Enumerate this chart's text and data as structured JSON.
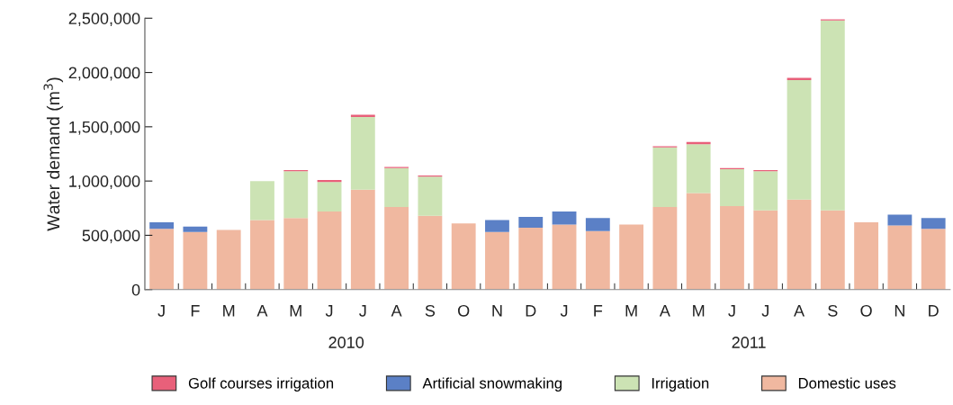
{
  "chart_data": {
    "type": "bar",
    "stacked": true,
    "categories": [
      "J",
      "F",
      "M",
      "A",
      "M",
      "J",
      "J",
      "A",
      "S",
      "O",
      "N",
      "D",
      "J",
      "F",
      "M",
      "A",
      "M",
      "J",
      "J",
      "A",
      "S",
      "O",
      "N",
      "D"
    ],
    "ylabel": "Water demand (m$^{3}$)",
    "series": [
      {
        "name": "Domestic uses",
        "color": "#f0b8a0",
        "values": [
          560000,
          530000,
          550000,
          640000,
          660000,
          720000,
          920000,
          760000,
          680000,
          610000,
          530000,
          570000,
          600000,
          540000,
          600000,
          760000,
          890000,
          770000,
          730000,
          830000,
          730000,
          620000,
          590000,
          560000
        ]
      },
      {
        "name": "Irrigation",
        "color": "#cce3b4",
        "values": [
          0,
          0,
          0,
          360000,
          430000,
          270000,
          670000,
          360000,
          360000,
          0,
          0,
          0,
          0,
          0,
          0,
          550000,
          450000,
          340000,
          360000,
          1100000,
          1750000,
          0,
          0,
          0
        ]
      },
      {
        "name": "Artificial snowmaking",
        "color": "#5b80c6",
        "values": [
          60000,
          50000,
          0,
          0,
          0,
          0,
          0,
          0,
          0,
          0,
          110000,
          100000,
          120000,
          120000,
          0,
          0,
          0,
          0,
          0,
          0,
          0,
          0,
          100000,
          100000
        ]
      },
      {
        "name": "Golf courses irrigation",
        "color": "#e8607a",
        "values": [
          0,
          0,
          0,
          0,
          10000,
          20000,
          20000,
          10000,
          10000,
          0,
          0,
          0,
          0,
          0,
          0,
          10000,
          20000,
          10000,
          10000,
          20000,
          10000,
          0,
          0,
          0
        ]
      }
    ],
    "ylim": [
      0,
      2500000
    ],
    "yticks": [
      {
        "value": 0,
        "label": "0"
      },
      {
        "value": 500000,
        "label": "500,000"
      },
      {
        "value": 1000000,
        "label": "1,000,000"
      },
      {
        "value": 1500000,
        "label": "1,500,000"
      },
      {
        "value": 2000000,
        "label": "2,000,000"
      },
      {
        "value": 2500000,
        "label": "2,500,000"
      }
    ],
    "annotations": [
      "2010",
      "2011"
    ],
    "legend": "bottom",
    "grid": false
  }
}
